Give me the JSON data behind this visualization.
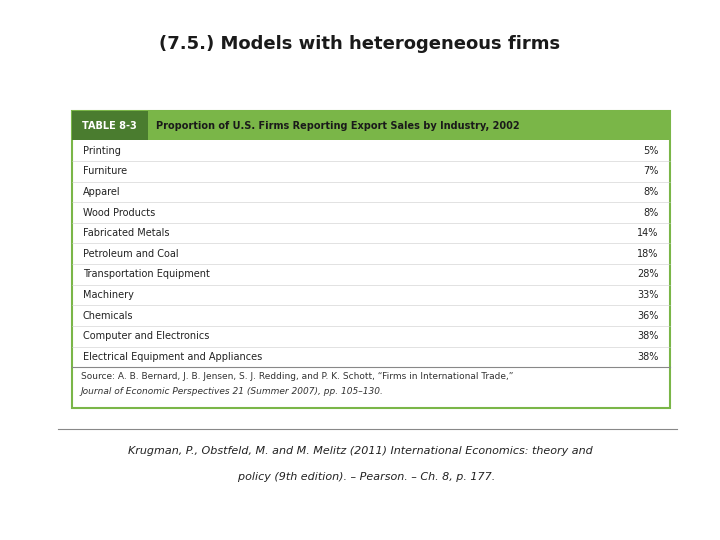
{
  "title": "(7.5.) Models with heterogeneous firms",
  "table_title": "TABLE 8-3",
  "table_header": "Proportion of U.S. Firms Reporting Export Sales by Industry, 2002",
  "industries": [
    "Printing",
    "Furniture",
    "Apparel",
    "Wood Products",
    "Fabricated Metals",
    "Petroleum and Coal",
    "Transportation Equipment",
    "Machinery",
    "Chemicals",
    "Computer and Electronics",
    "Electrical Equipment and Appliances"
  ],
  "values": [
    "5%",
    "7%",
    "8%",
    "8%",
    "14%",
    "18%",
    "28%",
    "33%",
    "36%",
    "38%",
    "38%"
  ],
  "source_line1": "Source: A. B. Bernard, J. B. Jensen, S. J. Redding, and P. K. Schott, “Firms in International Trade,”",
  "source_line2": "Journal of Economic Perspectives 21 (Summer 2007), pp. 105–130.",
  "footnote_line1": "Krugman, P., Obstfeld, M. and M. Melitz (2011) International Economics: theory and",
  "footnote_line2": "    policy (9th edition). – Pearson. – Ch. 8, p. 177.",
  "header_bg_color": "#7ab648",
  "header_label_bg": "#4a7c2f",
  "table_border_color": "#7ab648",
  "bg_color": "#ffffff",
  "title_fontsize": 13,
  "header_fontsize": 7,
  "row_fontsize": 7,
  "source_fontsize": 6.5,
  "footnote_fontsize": 8
}
